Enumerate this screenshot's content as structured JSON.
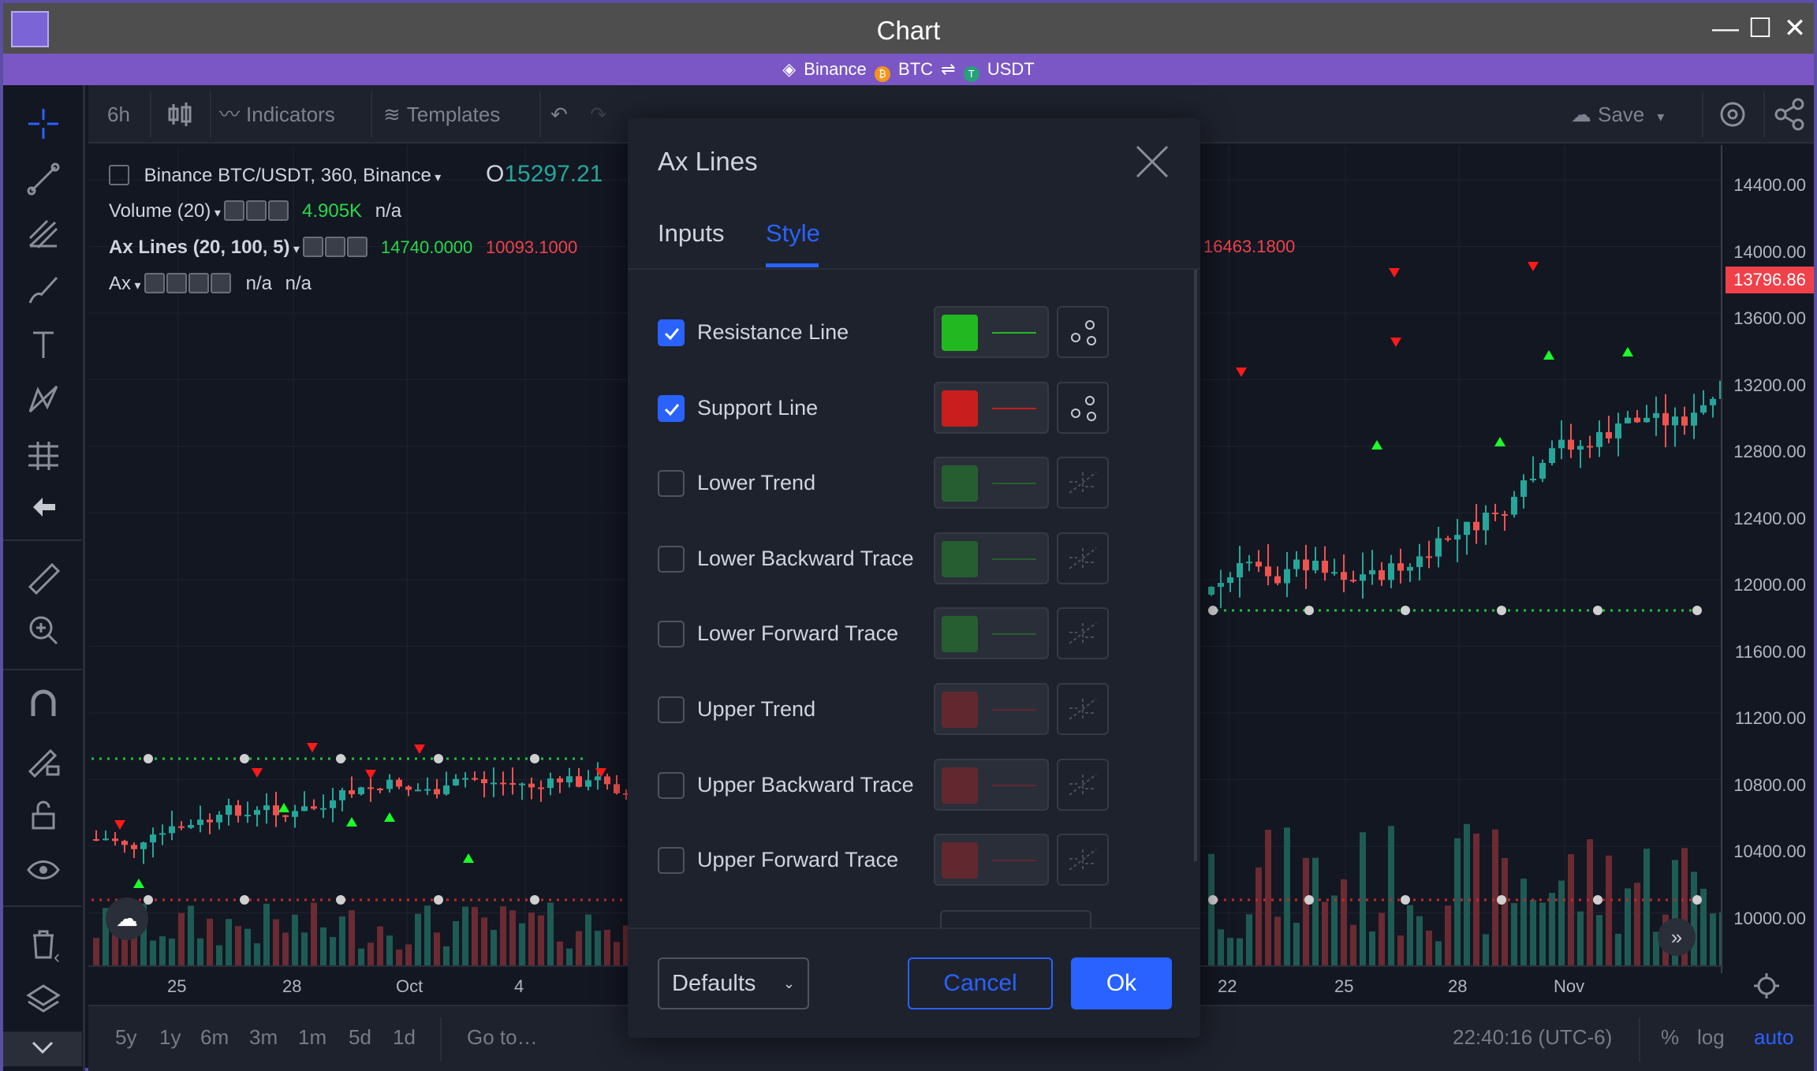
{
  "window": {
    "title": "Chart",
    "minimize_glyph": "—",
    "maximize_glyph": "☐",
    "close_glyph": "✕"
  },
  "pair_bar": {
    "exchange": "Binance",
    "base": "BTC",
    "swap_glyph": "⇌",
    "quote": "USDT"
  },
  "top_toolbar": {
    "interval": "6h",
    "indicators_label": "Indicators",
    "templates_label": "Templates",
    "save_label": "Save"
  },
  "legend": {
    "symbol": "Binance BTC/USDT, 360, Binance",
    "open_prefix": "O",
    "open_value": "15297.21",
    "volume_name": "Volume (20)",
    "volume_value": "4.905K",
    "volume_na": "n/a",
    "axlines_name": "Ax Lines (20, 100, 5)",
    "axlines_v1": "14740.0000",
    "axlines_v2": "10093.1000",
    "axlines_v3": "16463.1800",
    "ax_name": "Ax",
    "ax_na1": "n/a",
    "ax_na2": "n/a"
  },
  "price_axis": {
    "labels": [
      "14400.00",
      "14000.00",
      "13600.00",
      "13200.00",
      "12800.00",
      "12400.00",
      "12000.00",
      "11600.00",
      "11200.00",
      "10800.00",
      "10400.00",
      "10000.00"
    ],
    "current_price": "13796.86"
  },
  "time_axis": {
    "labels": [
      "25",
      "28",
      "Oct",
      "4",
      "22",
      "25",
      "28",
      "Nov"
    ]
  },
  "bottom_bar": {
    "ranges": [
      "5y",
      "1y",
      "6m",
      "3m",
      "1m",
      "5d",
      "1d"
    ],
    "goto_label": "Go to…",
    "clock": "22:40:16 (UTC-6)",
    "percent": "%",
    "log": "log",
    "auto": "auto"
  },
  "dialog": {
    "title": "Ax Lines",
    "tabs": [
      "Inputs",
      "Style"
    ],
    "active_tab": "Style",
    "rows": [
      {
        "label": "Resistance Line",
        "checked": true,
        "color": "#22b822"
      },
      {
        "label": "Support Line",
        "checked": true,
        "color": "#c81e1e"
      },
      {
        "label": "Lower Trend",
        "checked": false,
        "color": "#22b822"
      },
      {
        "label": "Lower Backward Trace",
        "checked": false,
        "color": "#22b822"
      },
      {
        "label": "Lower Forward Trace",
        "checked": false,
        "color": "#22b822"
      },
      {
        "label": "Upper Trend",
        "checked": false,
        "color": "#c81e1e"
      },
      {
        "label": "Upper Backward Trace",
        "checked": false,
        "color": "#c81e1e"
      },
      {
        "label": "Upper Forward Trace",
        "checked": false,
        "color": "#c81e1e"
      }
    ],
    "defaults_label": "Defaults",
    "cancel_label": "Cancel",
    "ok_label": "Ok"
  },
  "icons": [
    "crosshair-icon",
    "trendline-icon",
    "fib-icon",
    "brush-icon",
    "text-icon",
    "pattern-icon",
    "prediction-icon",
    "back-arrow-icon",
    "ruler-icon",
    "zoom-in-icon",
    "magnet-icon",
    "lock-drawing-icon",
    "unlock-icon",
    "eye-icon",
    "trash-icon",
    "layers-icon",
    "chevron-down-icon",
    "gear-icon",
    "share-icon",
    "close-icon"
  ]
}
